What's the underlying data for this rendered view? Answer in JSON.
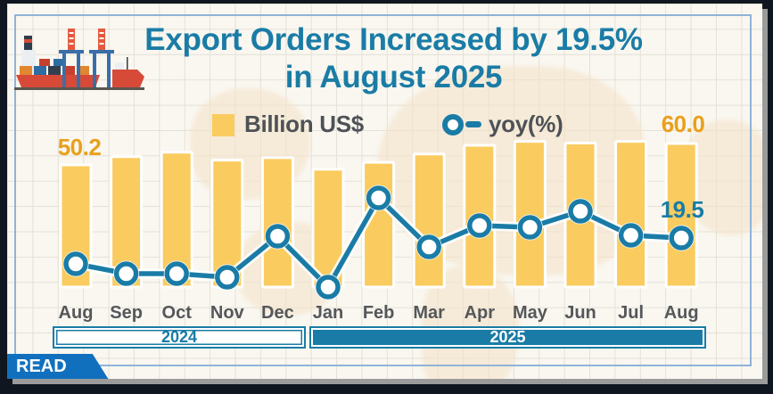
{
  "header": {
    "title_line1": "Export Orders Increased by 19.5%",
    "title_line2": "in August 2025"
  },
  "legend": {
    "bar_label": "Billion US$",
    "line_label": "yoy(%)"
  },
  "annotations": {
    "first_bar_label": "50.2",
    "last_bar_label": "60.0",
    "last_line_label": "19.5"
  },
  "x_axis": {
    "year_bands": [
      {
        "label": "2024",
        "months": [
          "Aug",
          "Sep",
          "Oct",
          "Nov",
          "Dec"
        ]
      },
      {
        "label": "2025",
        "months": [
          "Jan",
          "Feb",
          "Mar",
          "Apr",
          "May",
          "Jun",
          "Jul",
          "Aug"
        ]
      }
    ]
  },
  "read_button": {
    "label": "READ"
  },
  "icons": {
    "ship": "cargo-ship-with-port-cranes",
    "bar_legend_swatch": "yellow-square",
    "line_legend_marker": "teal-circle-with-line"
  },
  "colors": {
    "bar_yellow": "#FACB5E",
    "line_teal": "#1A7CA6",
    "title_teal": "#1A7CA6",
    "accent_orange": "#E8A01D",
    "month_gray": "#55575A",
    "read_blue": "#1170BE",
    "page_background": "#F9F7F0",
    "grid_line": "#E4E1D6",
    "inner_frame_blue": "#8FB3D9"
  },
  "chart_data": {
    "type": "bar",
    "title": "Export Orders Increased by 19.5% in August 2025",
    "categories": [
      "Aug",
      "Sep",
      "Oct",
      "Nov",
      "Dec",
      "Jan",
      "Feb",
      "Mar",
      "Apr",
      "May",
      "Jun",
      "Jul",
      "Aug"
    ],
    "category_years": [
      "2024",
      "2024",
      "2024",
      "2024",
      "2024",
      "2025",
      "2025",
      "2025",
      "2025",
      "2025",
      "2025",
      "2025",
      "2025"
    ],
    "series": [
      {
        "name": "Billion US$",
        "type": "bar",
        "color": "#FACB5E",
        "values": [
          50.2,
          54.0,
          56.0,
          52.4,
          53.5,
          48.2,
          51.4,
          55.2,
          59.2,
          61.0,
          60.2,
          61.0,
          60.0
        ]
      },
      {
        "name": "yoy(%)",
        "type": "line",
        "color": "#1A7CA6",
        "values": [
          16.6,
          15.5,
          15.5,
          15.1,
          19.7,
          14.0,
          24.0,
          18.5,
          20.9,
          20.7,
          22.5,
          19.8,
          19.5
        ]
      }
    ],
    "value_labels": [
      {
        "series": "Billion US$",
        "category": "Aug 2024",
        "text": "50.2"
      },
      {
        "series": "Billion US$",
        "category": "Aug 2025",
        "text": "60.0"
      },
      {
        "series": "yoy(%)",
        "category": "Aug 2025",
        "text": "19.5"
      }
    ],
    "xlabel": "",
    "ylabel": "",
    "legend_position": "top",
    "grid": true,
    "x_group_labels": [
      "2024",
      "2025"
    ]
  }
}
